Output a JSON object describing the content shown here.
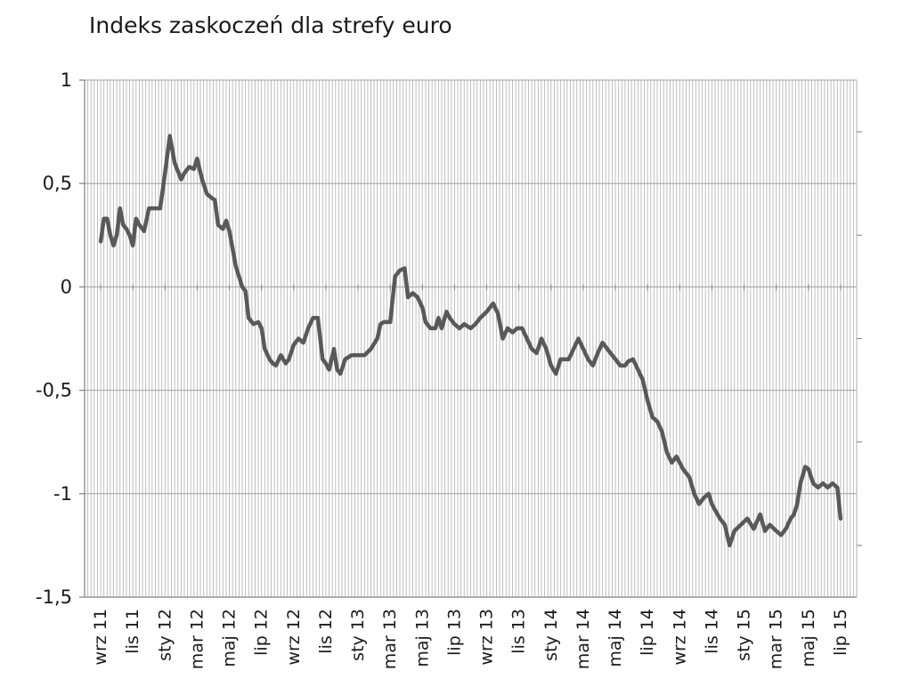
{
  "chart_data": {
    "type": "line",
    "title": "Indeks zaskoczeń dla strefy euro",
    "xlabel": "",
    "ylabel": "",
    "ylim": [
      -1.5,
      1
    ],
    "yticks": [
      1,
      0.5,
      0,
      -0.5,
      -1,
      -1.5
    ],
    "ytick_labels": [
      "1",
      "0,5",
      "0",
      "-0,5",
      "-1",
      "-1,5"
    ],
    "xtick_labels": [
      "wrz 11",
      "lis 11",
      "sty 12",
      "mar 12",
      "maj 12",
      "lip 12",
      "wrz 12",
      "lis 12",
      "sty 13",
      "mar 13",
      "maj 13",
      "lip 13",
      "wrz 13",
      "lis 13",
      "sty 14",
      "mar 14",
      "maj 14",
      "lip 14",
      "wrz 14",
      "lis 14",
      "sty 15",
      "mar 15",
      "maj 15",
      "lip 15"
    ],
    "grid": true,
    "line_color": "#595959",
    "series": [
      {
        "name": "",
        "x": [
          0,
          0.1,
          0.2,
          0.3,
          0.4,
          0.5,
          0.6,
          0.7,
          0.8,
          0.9,
          1.0,
          1.1,
          1.2,
          1.35,
          1.5,
          1.7,
          1.85,
          2.0,
          2.15,
          2.3,
          2.5,
          2.6,
          2.75,
          2.9,
          3.0,
          3.15,
          3.3,
          3.45,
          3.55,
          3.65,
          3.8,
          3.9,
          4.0,
          4.2,
          4.4,
          4.5,
          4.6,
          4.75,
          4.9,
          5.0,
          5.1,
          5.25,
          5.35,
          5.45,
          5.6,
          5.75,
          5.85,
          6.0,
          6.15,
          6.3,
          6.45,
          6.6,
          6.75,
          6.9,
          7.0,
          7.1,
          7.25,
          7.35,
          7.45,
          7.6,
          7.8,
          8.0,
          8.2,
          8.4,
          8.6,
          8.7,
          8.8,
          9.0,
          9.15,
          9.3,
          9.45,
          9.55,
          9.7,
          9.85,
          10.0,
          10.1,
          10.25,
          10.4,
          10.5,
          10.6,
          10.75,
          10.85,
          11.0,
          11.15,
          11.3,
          11.5,
          11.65,
          11.8,
          12.0,
          12.2,
          12.35,
          12.5,
          12.65,
          12.8,
          12.95,
          13.1,
          13.25,
          13.4,
          13.55,
          13.7,
          13.85,
          14.0,
          14.15,
          14.3,
          14.45,
          14.55,
          14.7,
          14.85,
          15.0,
          15.15,
          15.3,
          15.45,
          15.6,
          15.75,
          15.9,
          16.0,
          16.15,
          16.3,
          16.4,
          16.55,
          16.7,
          16.85,
          17.0,
          17.15,
          17.3,
          17.45,
          17.6,
          17.75,
          17.9,
          18.0,
          18.1,
          18.2,
          18.3,
          18.45,
          18.6,
          18.75,
          18.9,
          19.0,
          19.1,
          19.25,
          19.4,
          19.55,
          19.7,
          19.9,
          20.1,
          20.3,
          20.5,
          20.65,
          20.8,
          21.0,
          21.15,
          21.3,
          21.45,
          21.55,
          21.65,
          21.75,
          21.9,
          22.0,
          22.15,
          22.3,
          22.45,
          22.6,
          22.75,
          22.9,
          23.0
        ],
        "values": [
          0.22,
          0.33,
          0.33,
          0.25,
          0.2,
          0.25,
          0.38,
          0.3,
          0.28,
          0.25,
          0.2,
          0.33,
          0.3,
          0.27,
          0.38,
          0.38,
          0.38,
          0.55,
          0.73,
          0.6,
          0.52,
          0.55,
          0.58,
          0.57,
          0.62,
          0.52,
          0.45,
          0.43,
          0.42,
          0.3,
          0.28,
          0.32,
          0.27,
          0.1,
          0.0,
          -0.02,
          -0.15,
          -0.18,
          -0.17,
          -0.2,
          -0.3,
          -0.35,
          -0.37,
          -0.38,
          -0.33,
          -0.37,
          -0.35,
          -0.28,
          -0.25,
          -0.27,
          -0.2,
          -0.15,
          -0.15,
          -0.35,
          -0.37,
          -0.4,
          -0.3,
          -0.4,
          -0.42,
          -0.35,
          -0.33,
          -0.33,
          -0.33,
          -0.3,
          -0.25,
          -0.18,
          -0.17,
          -0.17,
          0.05,
          0.08,
          0.09,
          -0.05,
          -0.03,
          -0.05,
          -0.1,
          -0.17,
          -0.2,
          -0.2,
          -0.15,
          -0.2,
          -0.12,
          -0.15,
          -0.18,
          -0.2,
          -0.18,
          -0.2,
          -0.18,
          -0.15,
          -0.12,
          -0.08,
          -0.13,
          -0.25,
          -0.2,
          -0.22,
          -0.2,
          -0.2,
          -0.25,
          -0.3,
          -0.32,
          -0.25,
          -0.3,
          -0.38,
          -0.42,
          -0.35,
          -0.35,
          -0.35,
          -0.3,
          -0.25,
          -0.3,
          -0.35,
          -0.38,
          -0.32,
          -0.27,
          -0.3,
          -0.33,
          -0.35,
          -0.38,
          -0.38,
          -0.36,
          -0.35,
          -0.4,
          -0.45,
          -0.55,
          -0.63,
          -0.65,
          -0.7,
          -0.8,
          -0.85,
          -0.82,
          -0.85,
          -0.88,
          -0.9,
          -0.92,
          -1.0,
          -1.05,
          -1.02,
          -1.0,
          -1.05,
          -1.08,
          -1.12,
          -1.15,
          -1.25,
          -1.18,
          -1.15,
          -1.12,
          -1.17,
          -1.1,
          -1.18,
          -1.15,
          -1.18,
          -1.2,
          -1.17,
          -1.12,
          -1.1,
          -1.05,
          -0.95,
          -0.87,
          -0.88,
          -0.95,
          -0.97,
          -0.95,
          -0.97,
          -0.95,
          -0.97,
          -1.12
        ]
      }
    ]
  }
}
